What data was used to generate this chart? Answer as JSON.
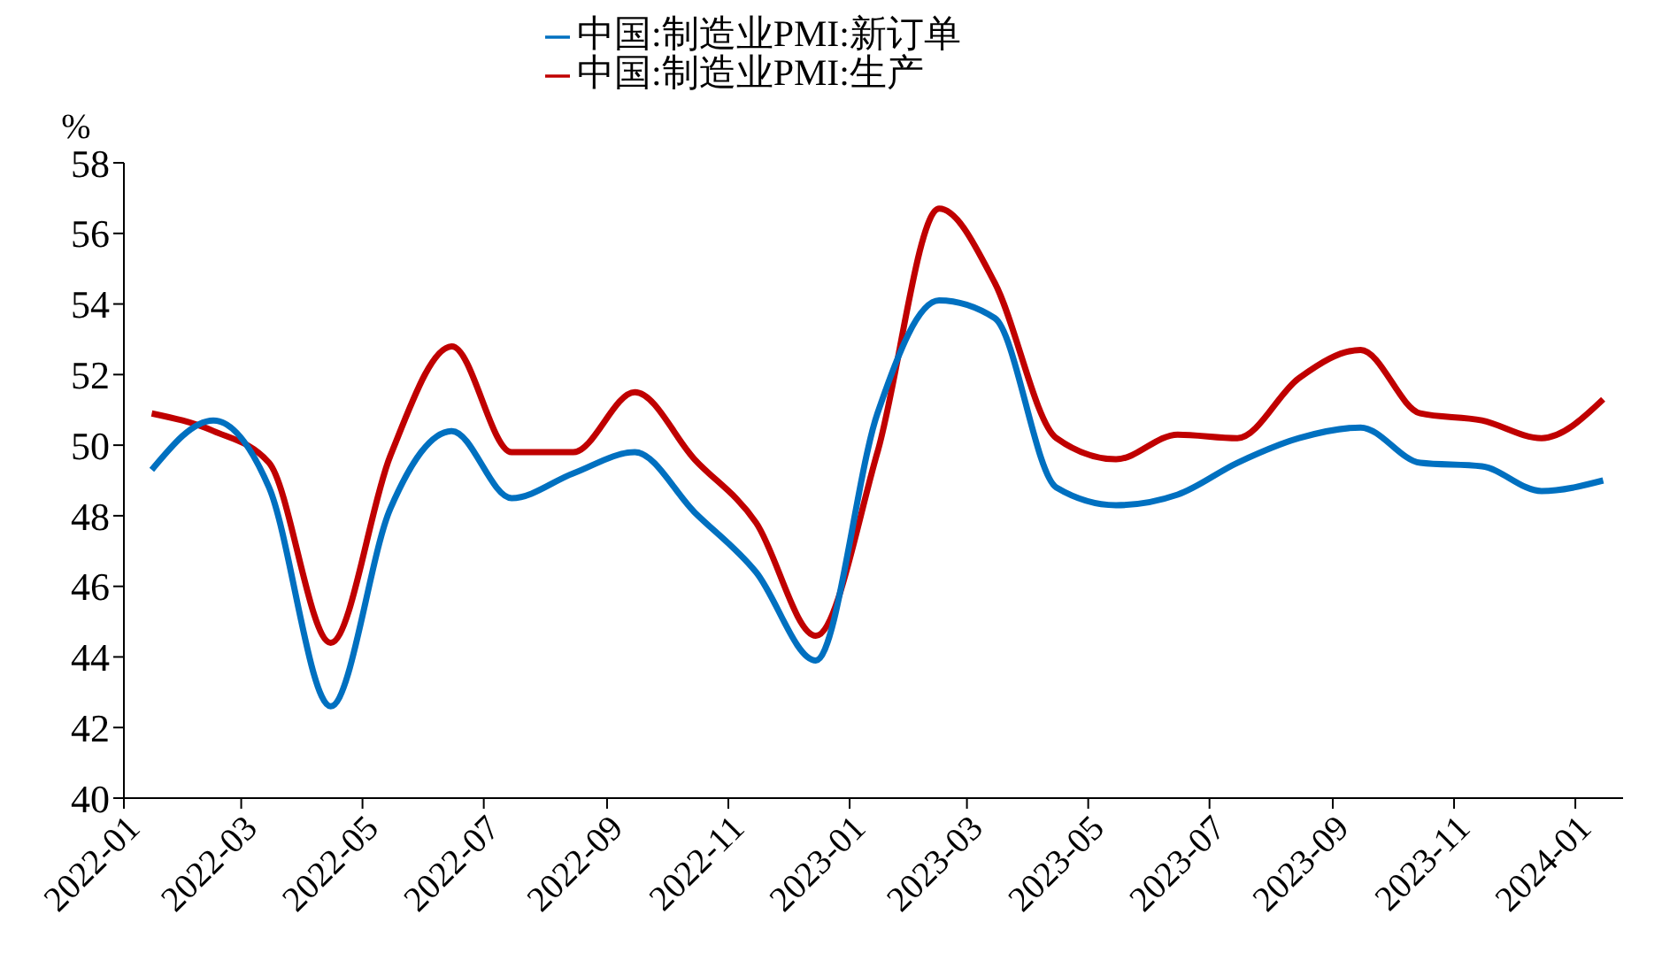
{
  "chart_data": {
    "type": "line",
    "ylabel": "%",
    "x": [
      "2022-01-15",
      "2022-02-15",
      "2022-03-15",
      "2022-04-15",
      "2022-05-15",
      "2022-06-15",
      "2022-07-15",
      "2022-08-15",
      "2022-09-15",
      "2022-10-15",
      "2022-11-15",
      "2022-12-15",
      "2023-01-15",
      "2023-02-15",
      "2023-03-15",
      "2023-04-15",
      "2023-05-15",
      "2023-06-15",
      "2023-07-15",
      "2023-08-15",
      "2023-09-15",
      "2023-10-15",
      "2023-11-15",
      "2023-12-15",
      "2024-01-15"
    ],
    "series": [
      {
        "name": "中国:制造业PMI:生产",
        "color": "#c00000",
        "values": [
          50.9,
          50.4,
          49.5,
          44.4,
          49.7,
          52.8,
          49.8,
          49.8,
          51.5,
          49.6,
          47.8,
          44.6,
          49.8,
          56.7,
          54.6,
          50.2,
          49.6,
          50.3,
          50.2,
          51.9,
          52.7,
          50.9,
          50.7,
          50.2,
          51.3
        ]
      },
      {
        "name": "中国:制造业PMI:新订单",
        "color": "#0070c0",
        "values": [
          49.3,
          50.7,
          48.8,
          42.6,
          48.2,
          50.4,
          48.5,
          49.2,
          49.8,
          48.1,
          46.4,
          43.9,
          50.9,
          54.1,
          53.6,
          48.8,
          48.3,
          48.6,
          49.5,
          50.2,
          50.5,
          49.5,
          49.4,
          48.7,
          49.0
        ]
      }
    ],
    "xlim": [
      "2022-01-01",
      "2024-01-25"
    ],
    "xticks": [
      {
        "value": "2022-01-01",
        "label": "2022-01"
      },
      {
        "value": "2022-03-01",
        "label": "2022-03"
      },
      {
        "value": "2022-05-01",
        "label": "2022-05"
      },
      {
        "value": "2022-07-01",
        "label": "2022-07"
      },
      {
        "value": "2022-09-01",
        "label": "2022-09"
      },
      {
        "value": "2022-11-01",
        "label": "2022-11"
      },
      {
        "value": "2023-01-01",
        "label": "2023-01"
      },
      {
        "value": "2023-03-01",
        "label": "2023-03"
      },
      {
        "value": "2023-05-01",
        "label": "2023-05"
      },
      {
        "value": "2023-07-01",
        "label": "2023-07"
      },
      {
        "value": "2023-09-01",
        "label": "2023-09"
      },
      {
        "value": "2023-11-01",
        "label": "2023-11"
      },
      {
        "value": "2024-01-01",
        "label": "2024-01"
      }
    ],
    "ylim": [
      40,
      58
    ],
    "yticks": [
      40,
      42,
      44,
      46,
      48,
      50,
      52,
      54,
      56,
      58
    ],
    "grid": false,
    "legend": "top",
    "marker": "none",
    "line_style": "solid"
  }
}
